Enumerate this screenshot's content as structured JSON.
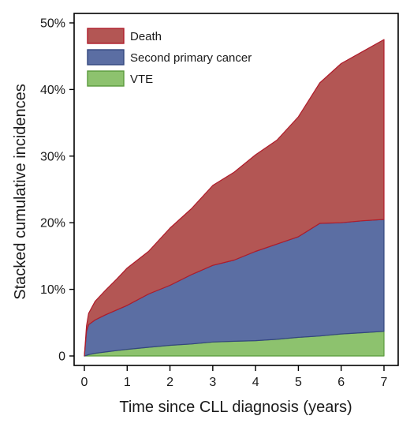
{
  "chart_data": {
    "type": "area",
    "stacked": true,
    "title": "",
    "xlabel": "Time since CLL diagnosis (years)",
    "ylabel": "Stacked cumulative incidences",
    "xlim": [
      0,
      7
    ],
    "ylim": [
      0,
      50
    ],
    "x_ticks": [
      0,
      1,
      2,
      3,
      4,
      5,
      6,
      7
    ],
    "x_tick_labels": [
      "0",
      "1",
      "2",
      "3",
      "4",
      "5",
      "6",
      "7"
    ],
    "y_ticks": [
      0,
      10,
      20,
      30,
      40,
      50
    ],
    "y_tick_labels": [
      "0",
      "10%",
      "20%",
      "30%",
      "40%",
      "50%"
    ],
    "grid": false,
    "legend_position": "top-left",
    "x": [
      0,
      0.05,
      0.1,
      0.25,
      0.5,
      0.75,
      1,
      1.5,
      2,
      2.5,
      3,
      3.5,
      4,
      4.5,
      5,
      5.5,
      6,
      6.5,
      7
    ],
    "series": [
      {
        "name": "VTE",
        "color": "#8dc26e",
        "edge": "#5a9a3c",
        "values": [
          0,
          0.1,
          0.2,
          0.4,
          0.6,
          0.8,
          1.0,
          1.3,
          1.6,
          1.8,
          2.1,
          2.2,
          2.3,
          2.5,
          2.8,
          3.0,
          3.3,
          3.5,
          3.7
        ]
      },
      {
        "name": "Second primary cancer",
        "color": "#5b6ea3",
        "edge": "#33467e",
        "values": [
          0,
          3.6,
          4.5,
          5.0,
          5.6,
          6.1,
          6.6,
          8.0,
          9.0,
          10.4,
          11.5,
          12.2,
          13.4,
          14.3,
          15.1,
          16.9,
          16.7,
          16.8,
          16.8
        ]
      },
      {
        "name": "Death",
        "color": "#b35654",
        "edge": "#b01c2b",
        "values": [
          0,
          0.8,
          1.7,
          2.8,
          3.7,
          4.6,
          5.6,
          6.4,
          8.6,
          9.9,
          12.0,
          13.2,
          14.5,
          15.6,
          18.0,
          21.1,
          23.9,
          25.4,
          27.0
        ]
      }
    ]
  }
}
